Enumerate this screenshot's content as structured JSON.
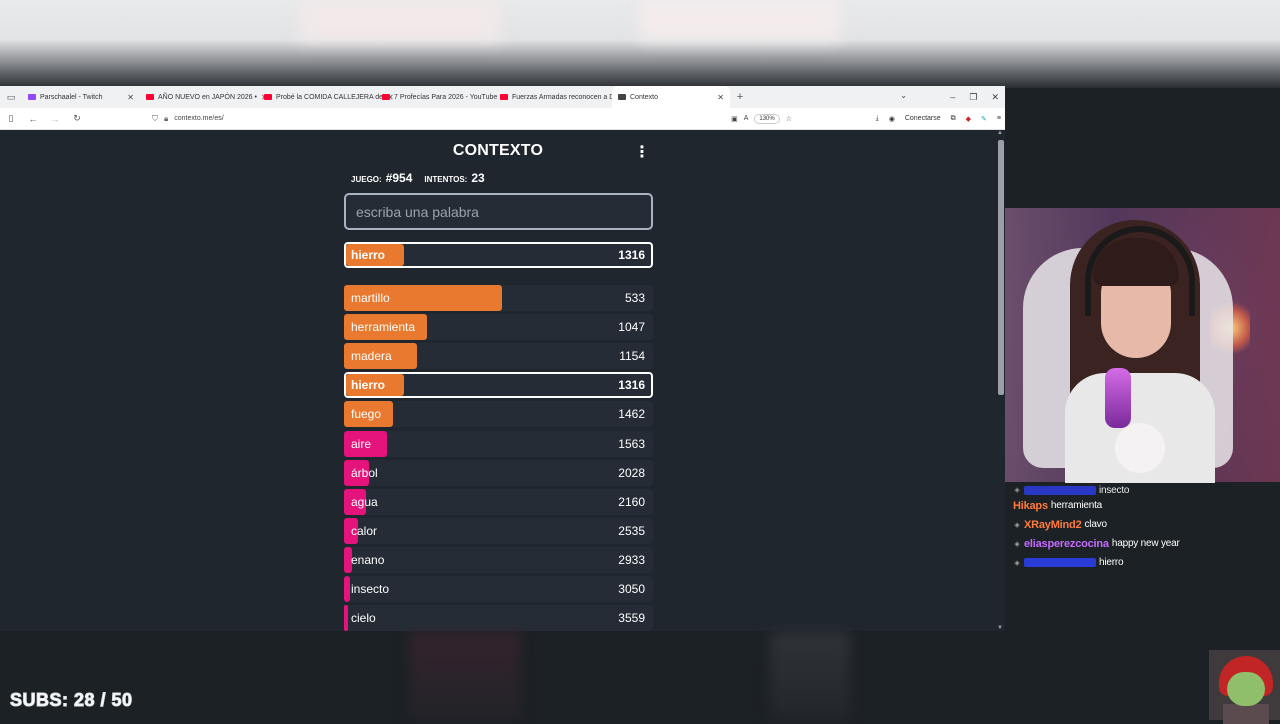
{
  "browser": {
    "tabs": [
      {
        "title": "Parschaalel - Twitch",
        "fav_color": "#9146ff",
        "active": false
      },
      {
        "title": "AÑO NUEVO en JAPÓN 2026 •",
        "fav_color": "#ff0033",
        "active": false
      },
      {
        "title": "Probé la COMIDA CALLEJERA de",
        "fav_color": "#ff0033",
        "active": false
      },
      {
        "title": "7 Profecías Para 2026 - YouTube",
        "fav_color": "#ff0033",
        "active": false
      },
      {
        "title": "Fuerzas Armadas reconocen a D",
        "fav_color": "#ff0033",
        "active": false
      },
      {
        "title": "Contexto",
        "fav_color": "#444444",
        "active": true
      }
    ],
    "url": "contexto.me/es/",
    "zoom": "130%",
    "connect_label": "Conectarse"
  },
  "game": {
    "title": "CONTEXTO",
    "game_label": "JUEGO:",
    "game_number": "#954",
    "attempts_label": "INTENTOS:",
    "attempts": "23",
    "input_placeholder": "escriba una palabra",
    "last_guess": {
      "word": "hierro",
      "rank": "1316",
      "fill": 0.19,
      "color": "#e8792f"
    },
    "guesses": [
      {
        "word": "martillo",
        "rank": "533",
        "fill": 0.51,
        "color": "#e8792f",
        "highlight": false
      },
      {
        "word": "herramienta",
        "rank": "1047",
        "fill": 0.27,
        "color": "#e8792f",
        "highlight": false
      },
      {
        "word": "madera",
        "rank": "1154",
        "fill": 0.235,
        "color": "#e8792f",
        "highlight": false
      },
      {
        "word": "hierro",
        "rank": "1316",
        "fill": 0.19,
        "color": "#e8792f",
        "highlight": true
      },
      {
        "word": "fuego",
        "rank": "1462",
        "fill": 0.16,
        "color": "#e8792f",
        "highlight": false
      },
      {
        "word": "aire",
        "rank": "1563",
        "fill": 0.14,
        "color": "#e5137c",
        "highlight": false
      },
      {
        "word": "árbol",
        "rank": "2028",
        "fill": 0.08,
        "color": "#e5137c",
        "highlight": false
      },
      {
        "word": "agua",
        "rank": "2160",
        "fill": 0.07,
        "color": "#e5137c",
        "highlight": false
      },
      {
        "word": "calor",
        "rank": "2535",
        "fill": 0.045,
        "color": "#e5137c",
        "highlight": false
      },
      {
        "word": "enano",
        "rank": "2933",
        "fill": 0.025,
        "color": "#e5137c",
        "highlight": false
      },
      {
        "word": "insecto",
        "rank": "3050",
        "fill": 0.02,
        "color": "#e5137c",
        "highlight": false
      },
      {
        "word": "cielo",
        "rank": "3559",
        "fill": 0.012,
        "color": "#e5137c",
        "highlight": false
      }
    ]
  },
  "chat": {
    "messages": [
      {
        "user": "",
        "text": "insecto",
        "color": "#2a3bd6"
      },
      {
        "user": "Hikaps",
        "text": "herramienta",
        "color": "#ff7a3c"
      },
      {
        "user": "XRayMind2",
        "text": "clavo",
        "color": "#ff7a3c"
      },
      {
        "user": "eliasperezcocina",
        "text": "happy new year",
        "color": "#c46bff"
      },
      {
        "user": "",
        "text": "hierro",
        "color": "#2a3bd6"
      }
    ]
  },
  "overlay": {
    "subs_text": "SUBS: 28 / 50"
  }
}
